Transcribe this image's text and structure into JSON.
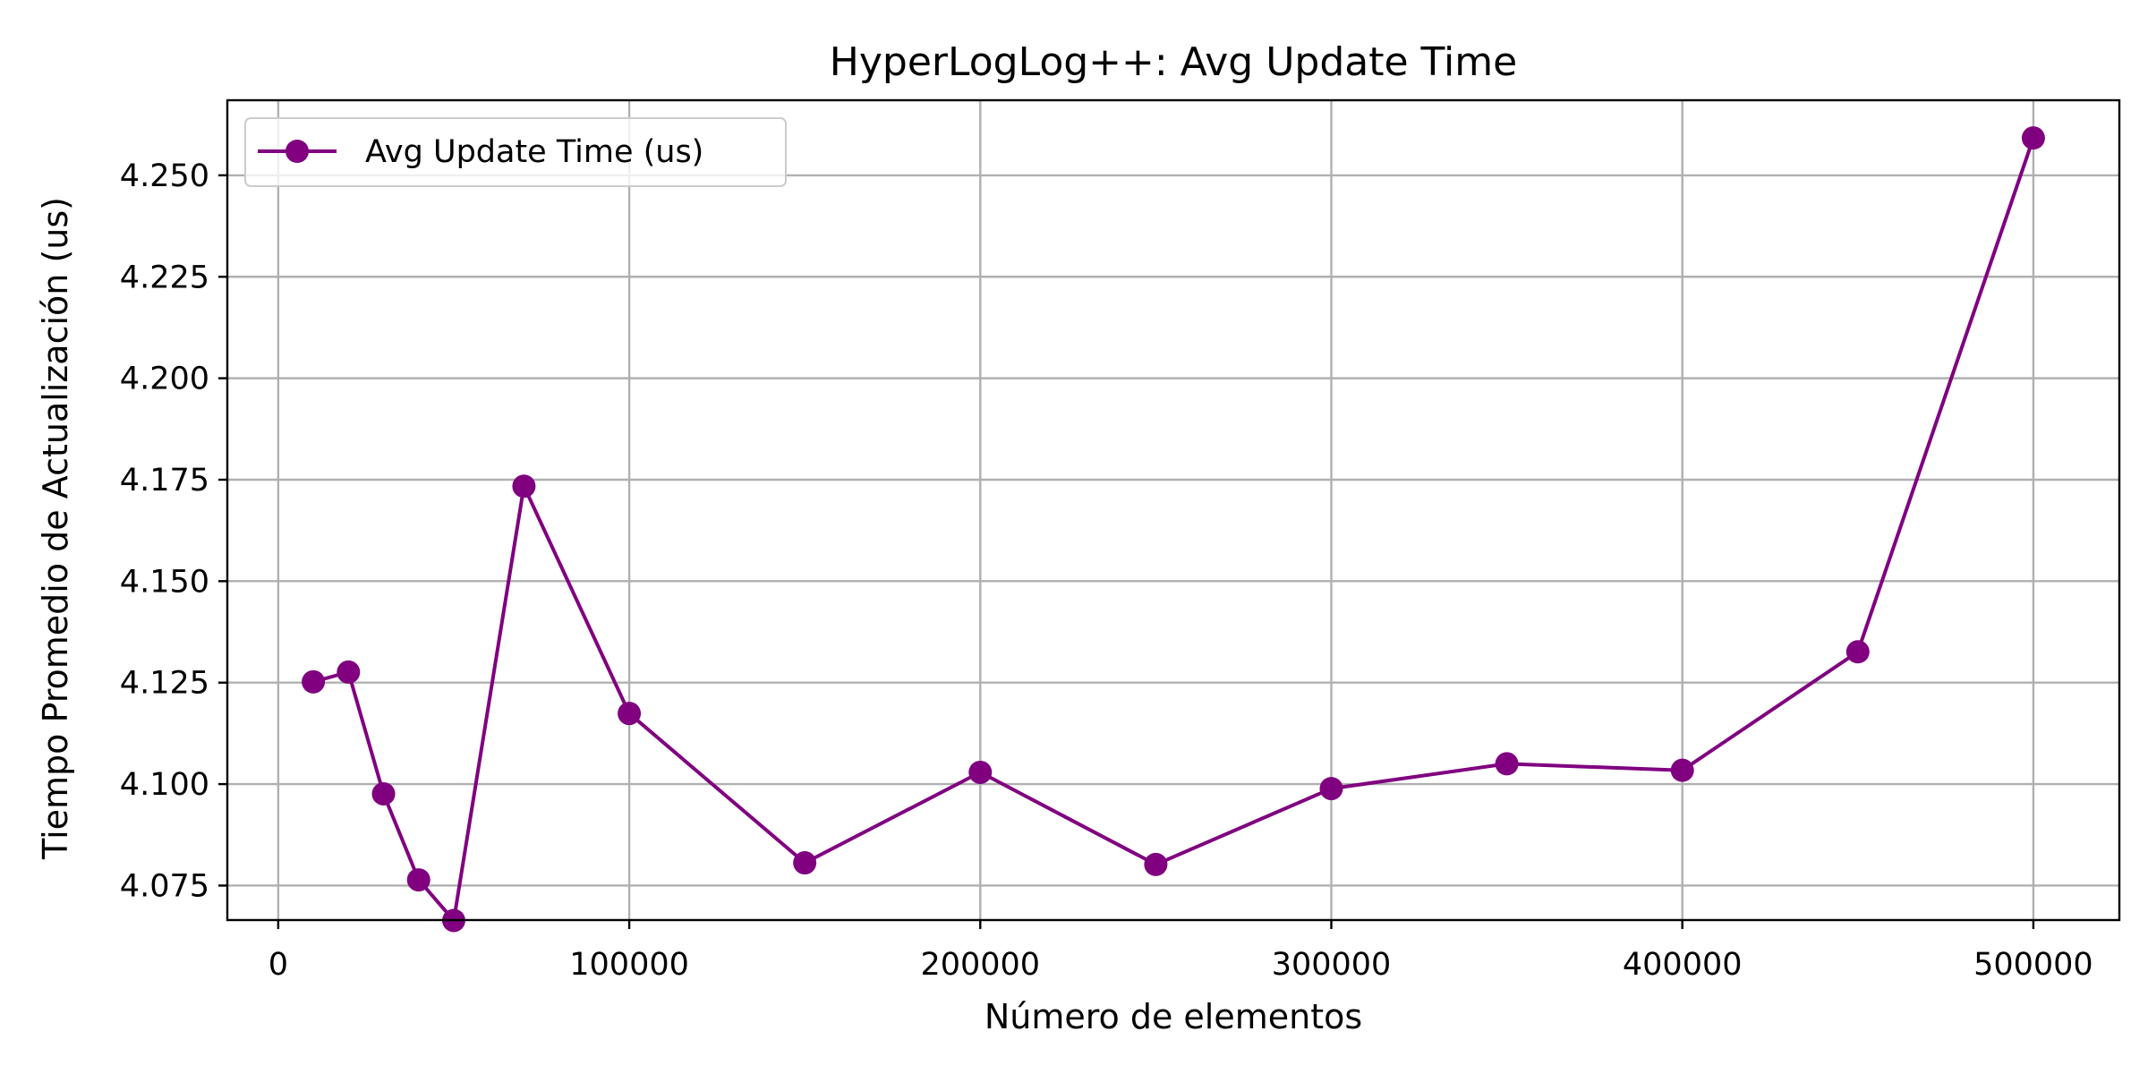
{
  "chart_data": {
    "type": "line",
    "title": "HyperLogLog++: Avg Update Time",
    "xlabel": "Número de elementos",
    "ylabel": "Tiempo Promedio de Actualización (us)",
    "xlim": [
      -14500,
      524500
    ],
    "ylim": [
      4.0665,
      4.2685
    ],
    "xticks": [
      0,
      100000,
      200000,
      300000,
      400000,
      500000
    ],
    "yticks": [
      4.075,
      4.1,
      4.125,
      4.15,
      4.175,
      4.2,
      4.225,
      4.25
    ],
    "xtick_labels": [
      "0",
      "100000",
      "200000",
      "300000",
      "400000",
      "500000"
    ],
    "ytick_labels": [
      "4.075",
      "4.100",
      "4.125",
      "4.150",
      "4.175",
      "4.200",
      "4.225",
      "4.250"
    ],
    "grid": true,
    "legend_position": "upper-left",
    "series": [
      {
        "name": "Avg Update Time (us)",
        "color": "#800080",
        "marker": "circle",
        "x": [
          10000,
          20000,
          30000,
          40000,
          50000,
          70000,
          100000,
          150000,
          200000,
          250000,
          300000,
          350000,
          400000,
          450000,
          500000
        ],
        "y": [
          4.1252,
          4.1276,
          4.0976,
          4.0764,
          4.0664,
          4.1734,
          4.1174,
          4.0806,
          4.1029,
          4.0802,
          4.0989,
          4.105,
          4.1034,
          4.1326,
          4.2592
        ]
      }
    ]
  }
}
